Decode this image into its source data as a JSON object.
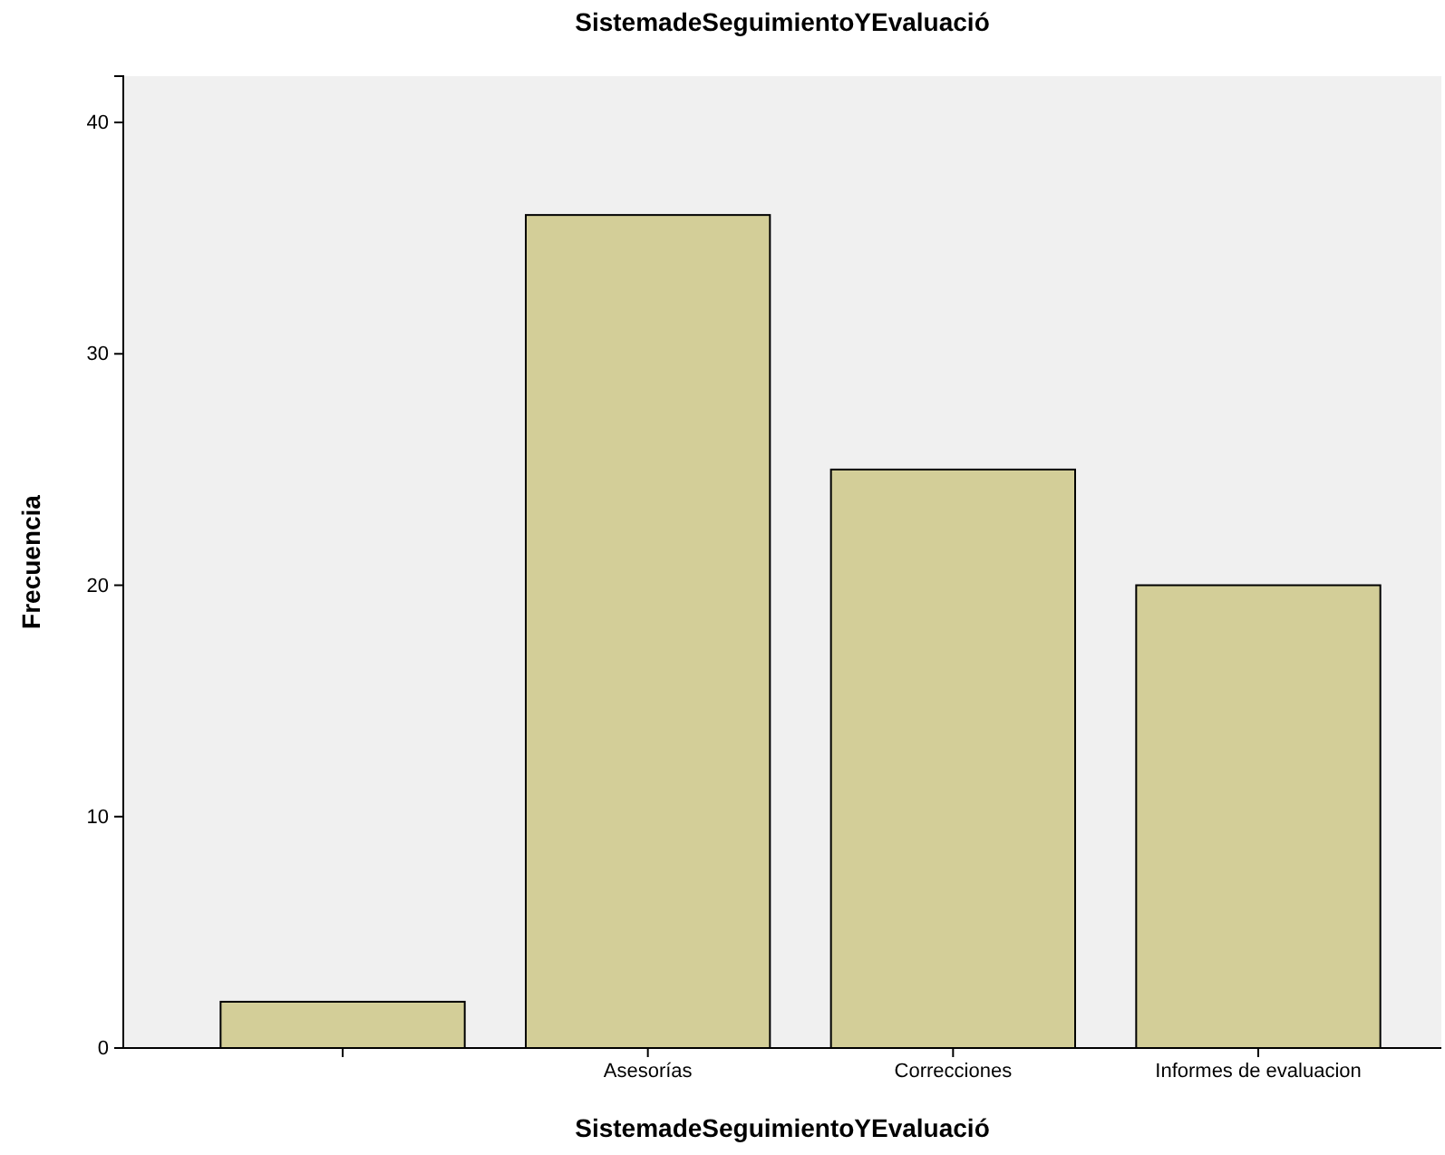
{
  "chart_data": {
    "type": "bar",
    "title": "SistemadeSeguimientoYEvaluació",
    "xlabel": "SistemadeSeguimientoYEvaluació",
    "ylabel": "Frecuencia",
    "categories": [
      null,
      "Asesorías",
      "Correcciones",
      "Informes de evaluacion"
    ],
    "values": [
      2,
      36,
      25,
      20
    ],
    "color": "#d3ce98",
    "ylim": [
      0,
      42
    ],
    "yticks": [
      0,
      10,
      20,
      30,
      40
    ]
  }
}
